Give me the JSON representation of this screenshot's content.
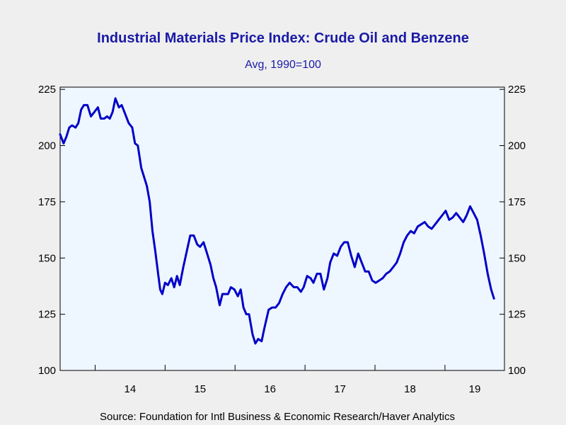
{
  "chart_data": {
    "type": "line",
    "title": "Industrial Materials Price Index: Crude Oil and Benzene",
    "subtitle": "Avg, 1990=100",
    "source": "Source:  Foundation for Intl Business & Economic Research/Haver Analytics",
    "xlabel": "",
    "ylabel": "",
    "x_tick_labels": [
      "14",
      "15",
      "16",
      "17",
      "18",
      "19"
    ],
    "y_ticks": [
      100,
      125,
      150,
      175,
      200,
      225
    ],
    "y_tick_labels": [
      "100",
      "125",
      "150",
      "175",
      "200",
      "225"
    ],
    "ylim": [
      100,
      226
    ],
    "xlim": [
      2013.5,
      2019.85
    ],
    "grid": false,
    "legend": "none",
    "series_color": "#0000c8",
    "plot_background": "#eef6ff",
    "x": [
      2013.5,
      2013.55,
      2013.59,
      2013.63,
      2013.67,
      2013.72,
      2013.76,
      2013.8,
      2013.84,
      2013.89,
      2013.94,
      2013.99,
      2014.04,
      2014.08,
      2014.13,
      2014.17,
      2014.21,
      2014.25,
      2014.29,
      2014.34,
      2014.38,
      2014.43,
      2014.48,
      2014.53,
      2014.57,
      2014.61,
      2014.66,
      2014.7,
      2014.74,
      2014.78,
      2014.82,
      2014.86,
      2014.9,
      2014.93,
      2014.96,
      2015.0,
      2015.04,
      2015.09,
      2015.13,
      2015.17,
      2015.21,
      2015.26,
      2015.31,
      2015.36,
      2015.41,
      2015.46,
      2015.5,
      2015.55,
      2015.6,
      2015.65,
      2015.69,
      2015.73,
      2015.78,
      2015.82,
      2015.86,
      2015.9,
      2015.94,
      2015.99,
      2016.04,
      2016.08,
      2016.12,
      2016.16,
      2016.2,
      2016.25,
      2016.29,
      2016.33,
      2016.38,
      2016.42,
      2016.48,
      2016.53,
      2016.58,
      2016.63,
      2016.68,
      2016.73,
      2016.78,
      2016.84,
      2016.89,
      2016.94,
      2016.98,
      2017.03,
      2017.08,
      2017.12,
      2017.17,
      2017.22,
      2017.27,
      2017.32,
      2017.36,
      2017.41,
      2017.46,
      2017.51,
      2017.56,
      2017.61,
      2017.66,
      2017.71,
      2017.76,
      2017.81,
      2017.86,
      2017.91,
      2017.96,
      2018.01,
      2018.06,
      2018.11,
      2018.16,
      2018.21,
      2018.26,
      2018.31,
      2018.36,
      2018.41,
      2018.46,
      2018.51,
      2018.56,
      2018.61,
      2018.66,
      2018.71,
      2018.76,
      2018.81,
      2018.86,
      2018.91,
      2018.96,
      2019.01,
      2019.06,
      2019.11,
      2019.16,
      2019.21,
      2019.26,
      2019.31,
      2019.36,
      2019.41,
      2019.46,
      2019.51,
      2019.56,
      2019.61,
      2019.66,
      2019.7
    ],
    "y": [
      205,
      201,
      204,
      208,
      209,
      208,
      210,
      216,
      218,
      218,
      213,
      215,
      217,
      212,
      212,
      213,
      212,
      215,
      221,
      217,
      218,
      214,
      210,
      208,
      201,
      200,
      190,
      186,
      182,
      175,
      162,
      153,
      143,
      136,
      134,
      139,
      138,
      141,
      137,
      142,
      138,
      146,
      153,
      160,
      160,
      156,
      155,
      157,
      152,
      147,
      141,
      137,
      129,
      134,
      134,
      134,
      137,
      136,
      133,
      136,
      128,
      125,
      125,
      116,
      112,
      114,
      113,
      119,
      127,
      128,
      128,
      130,
      134,
      137,
      139,
      137,
      137,
      135,
      137,
      142,
      141,
      139,
      143,
      143,
      136,
      141,
      148,
      152,
      151,
      155,
      157,
      157,
      151,
      146,
      152,
      148,
      144,
      144,
      140,
      139,
      140,
      141,
      143,
      144,
      146,
      148,
      152,
      157,
      160,
      162,
      161,
      164,
      165,
      166,
      164,
      163,
      165,
      167,
      169,
      171,
      167,
      168,
      170,
      168,
      166,
      169,
      173,
      170,
      167,
      160,
      152,
      143,
      136,
      132
    ]
  }
}
